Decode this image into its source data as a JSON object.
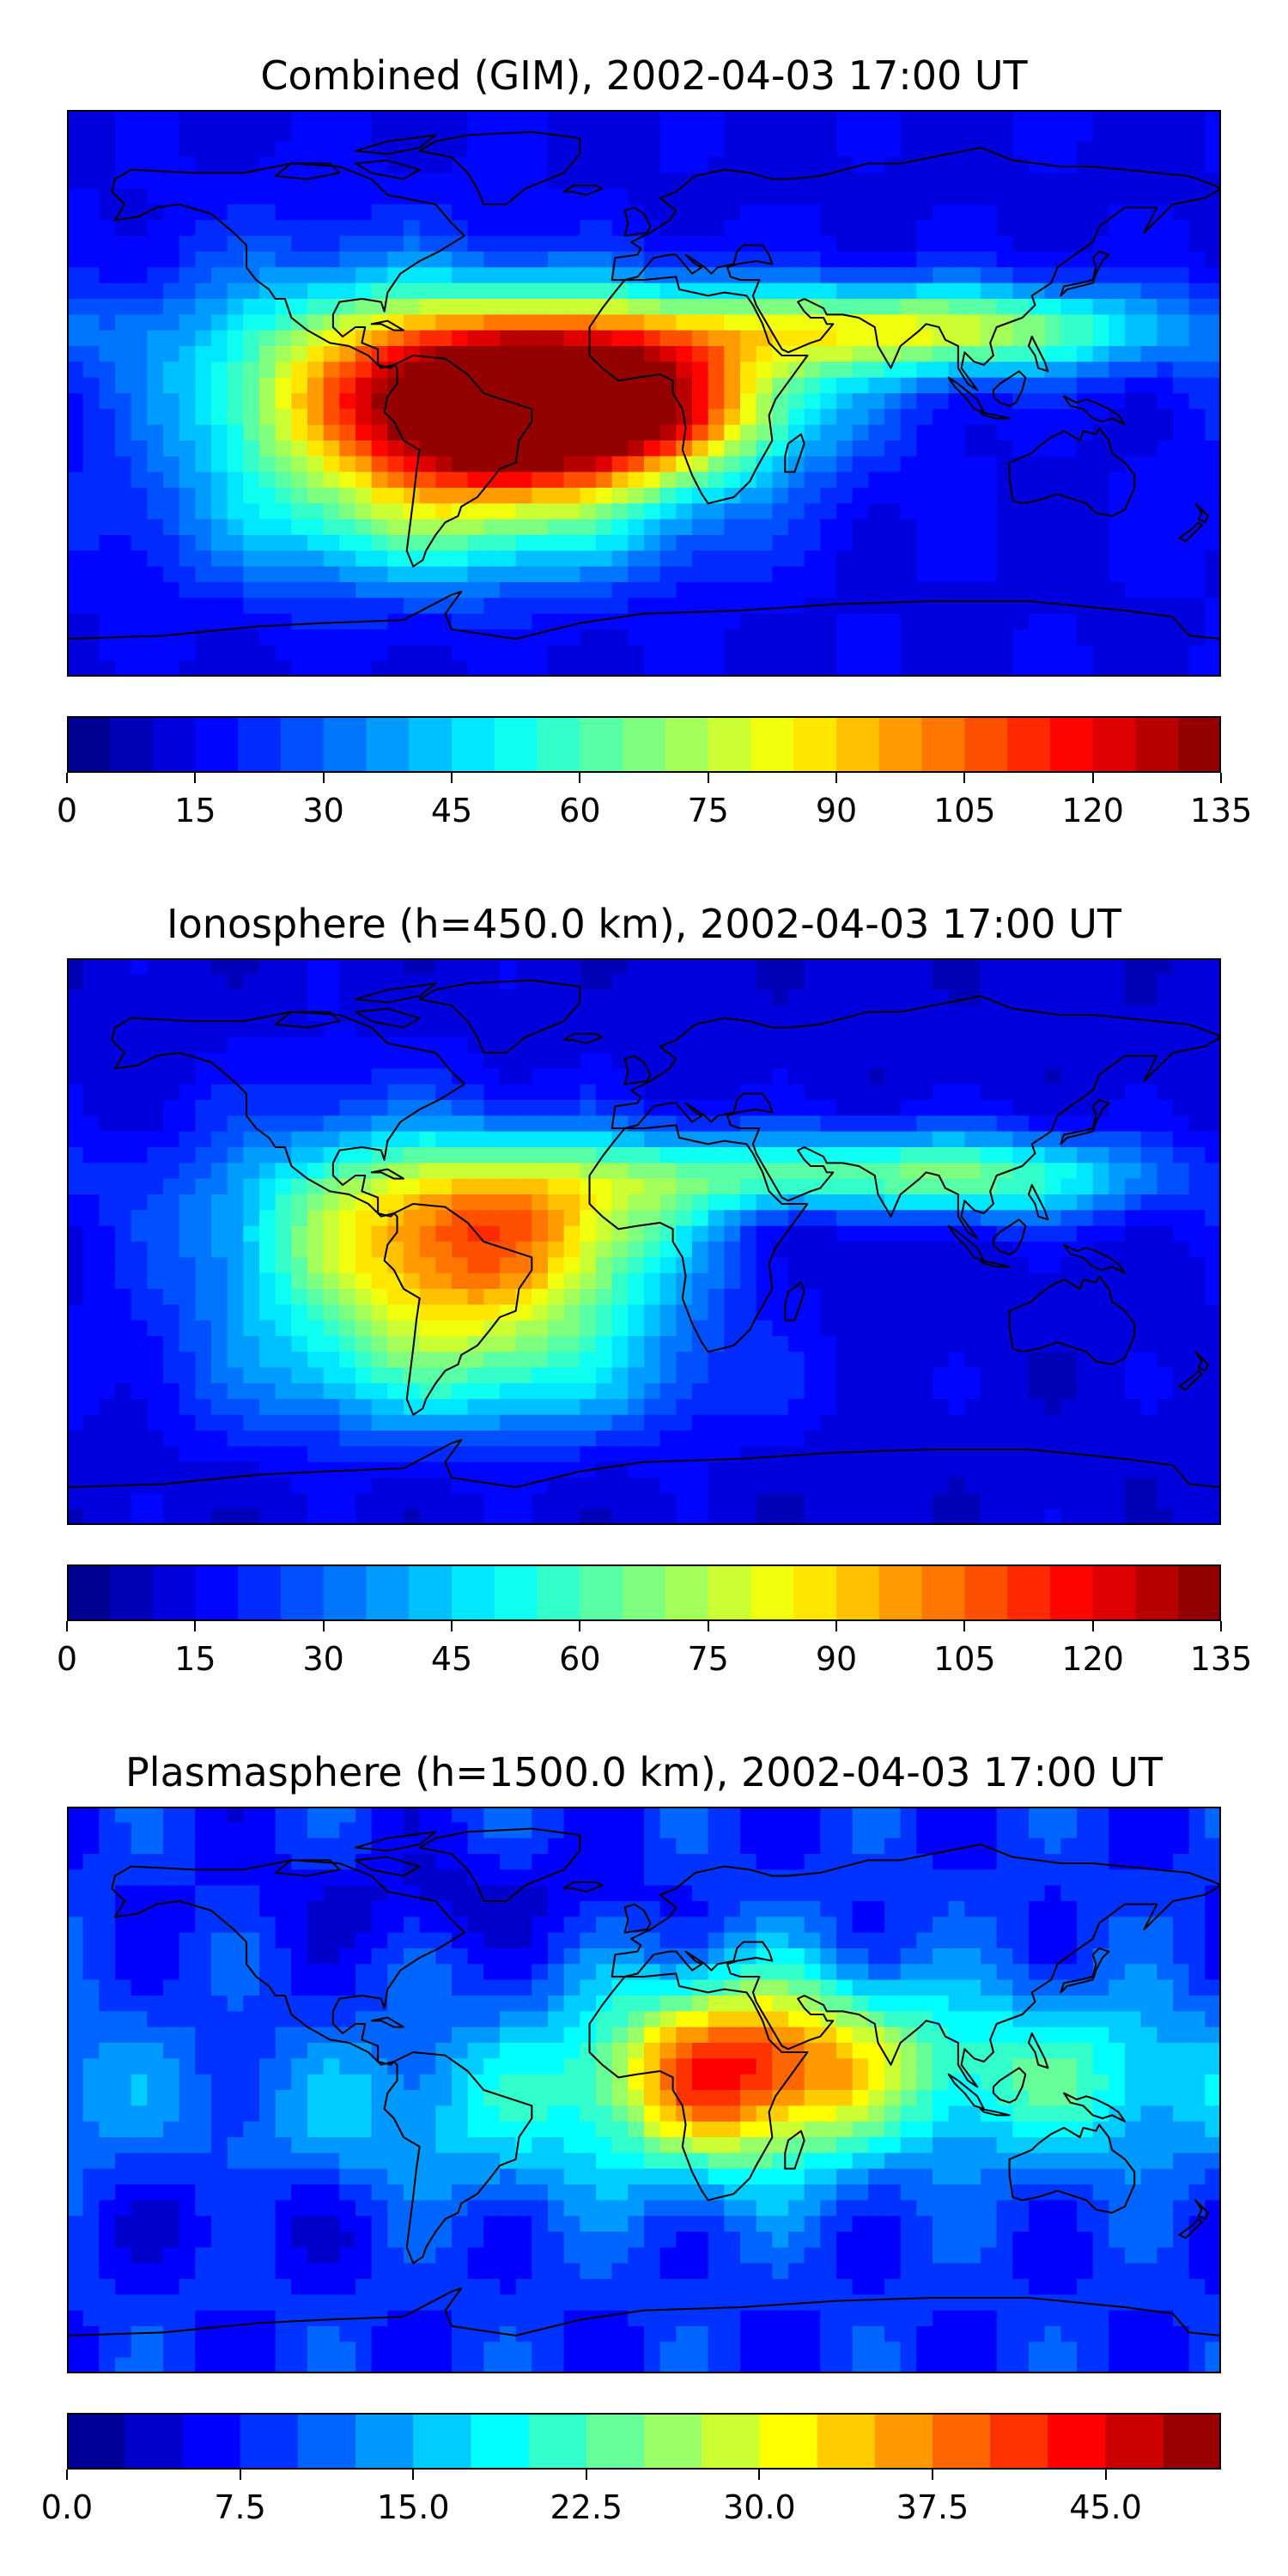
{
  "palette": {
    "jet_stops": [
      "#00007f",
      "#0000ff",
      "#007fff",
      "#00ffff",
      "#7fff7f",
      "#ffff00",
      "#ff7f00",
      "#ff0000",
      "#7f0000"
    ],
    "land_outline": "#000000"
  },
  "chart_data": [
    {
      "type": "heatmap",
      "title": "Combined (GIM), 2002-04-03 17:00 UT",
      "colorbar": {
        "vmin": 0,
        "vmax": 135,
        "levels": 27,
        "ticks": [
          "0",
          "15",
          "30",
          "45",
          "60",
          "75",
          "90",
          "105",
          "120",
          "135"
        ]
      },
      "field": {
        "base": 14,
        "blobs": [
          {
            "lon": -45,
            "lat": -10,
            "amp": 95,
            "slon": 42,
            "slat": 20
          },
          {
            "lon": -5,
            "lat": -5,
            "amp": 70,
            "slon": 40,
            "slat": 16
          },
          {
            "lon": -40,
            "lat": 15,
            "amp": 40,
            "slon": 48,
            "slat": 16
          },
          {
            "lon": 60,
            "lat": 20,
            "amp": 42,
            "slon": 55,
            "slat": 10
          },
          {
            "lon": 110,
            "lat": 20,
            "amp": 32,
            "slon": 45,
            "slat": 10
          },
          {
            "lon": -100,
            "lat": 0,
            "amp": 35,
            "slon": 40,
            "slat": 30
          },
          {
            "lon": -60,
            "lat": -45,
            "amp": 25,
            "slon": 55,
            "slat": 15
          }
        ]
      }
    },
    {
      "type": "heatmap",
      "title": "Ionosphere  (h=450.0 km), 2002-04-03 17:00 UT",
      "colorbar": {
        "vmin": 0,
        "vmax": 135,
        "levels": 27,
        "ticks": [
          "0",
          "15",
          "30",
          "45",
          "60",
          "75",
          "90",
          "105",
          "120",
          "135"
        ]
      },
      "field": {
        "base": 12,
        "blobs": [
          {
            "lon": -45,
            "lat": -10,
            "amp": 62,
            "slon": 38,
            "slat": 20
          },
          {
            "lon": -30,
            "lat": 15,
            "amp": 40,
            "slon": 48,
            "slat": 14
          },
          {
            "lon": -90,
            "lat": 0,
            "amp": 35,
            "slon": 40,
            "slat": 30
          },
          {
            "lon": 60,
            "lat": 22,
            "amp": 36,
            "slon": 50,
            "slat": 9
          },
          {
            "lon": 115,
            "lat": 20,
            "amp": 30,
            "slon": 35,
            "slat": 10
          },
          {
            "lon": -50,
            "lat": -45,
            "amp": 25,
            "slon": 55,
            "slat": 15
          },
          {
            "lon": 50,
            "lat": 5,
            "amp": -10,
            "slon": 25,
            "slat": 8
          }
        ]
      }
    },
    {
      "type": "heatmap",
      "title": "Plasmasphere (h=1500.0 km), 2002-04-03 17:00 UT",
      "colorbar": {
        "vmin": 0,
        "vmax": 50,
        "levels": 20,
        "ticks": [
          "0.0",
          "7.5",
          "15.0",
          "22.5",
          "30.0",
          "37.5",
          "45.0"
        ]
      },
      "field": {
        "base": 8,
        "blobs": [
          {
            "lon": 30,
            "lat": 5,
            "amp": 26,
            "slon": 30,
            "slat": 22
          },
          {
            "lon": 60,
            "lat": 10,
            "amp": 10,
            "slon": 60,
            "slat": 18
          },
          {
            "lon": -60,
            "lat": -10,
            "amp": 8,
            "slon": 50,
            "slat": 20
          },
          {
            "lon": 140,
            "lat": 0,
            "amp": 9,
            "slon": 40,
            "slat": 20
          },
          {
            "lon": -60,
            "lat": 60,
            "amp": -4,
            "slon": 40,
            "slat": 10
          },
          {
            "lon": -120,
            "lat": -40,
            "amp": -3,
            "slon": 40,
            "slat": 12
          }
        ]
      }
    }
  ]
}
